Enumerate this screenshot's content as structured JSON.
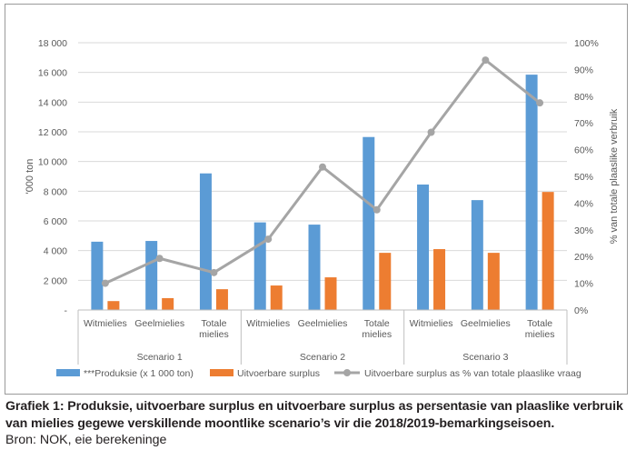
{
  "chart_data": {
    "type": "bar",
    "groups": [
      "Scenario 1",
      "Scenario 2",
      "Scenario 3"
    ],
    "categories": [
      "Witmielies",
      "Geelmielies",
      "Totale mielies",
      "Witmielies",
      "Geelmielies",
      "Totale mielies",
      "Witmielies",
      "Geelmielies",
      "Totale mielies"
    ],
    "category_lines": [
      [
        "Witmielies"
      ],
      [
        "Geelmielies"
      ],
      [
        "Totale",
        "mielies"
      ],
      [
        "Witmielies"
      ],
      [
        "Geelmielies"
      ],
      [
        "Totale",
        "mielies"
      ],
      [
        "Witmielies"
      ],
      [
        "Geelmielies"
      ],
      [
        "Totale",
        "mielies"
      ]
    ],
    "series": [
      {
        "name": "***Produksie (x 1 000 ton)",
        "type": "bar",
        "axis": "left",
        "color": "#5b9bd5",
        "values": [
          4600,
          4650,
          9200,
          5900,
          5750,
          11650,
          8450,
          7400,
          15850
        ]
      },
      {
        "name": "Uitvoerbare surplus",
        "type": "bar",
        "axis": "left",
        "color": "#ed7d31",
        "values": [
          600,
          800,
          1400,
          1650,
          2200,
          3850,
          4100,
          3850,
          7950
        ]
      },
      {
        "name": "Uitvoerbare surplus as % van totale plaaslike vraag",
        "type": "line",
        "axis": "right",
        "color": "#a5a5a5",
        "values": [
          10,
          19.3,
          14,
          26.5,
          53.5,
          37.5,
          66.5,
          93.5,
          77.5
        ]
      }
    ],
    "ylabel": "'000 ton",
    "y2label": "% van totale plaaslike verbruik",
    "ylim": [
      0,
      18000
    ],
    "y2lim": [
      0,
      100
    ],
    "yticks": [
      "-",
      "2 000",
      "4 000",
      "6 000",
      "8 000",
      "10 000",
      "12 000",
      "14 000",
      "16 000",
      "18 000"
    ],
    "y2ticks": [
      "0%",
      "10%",
      "20%",
      "30%",
      "40%",
      "50%",
      "60%",
      "70%",
      "80%",
      "90%",
      "100%"
    ],
    "grid": true,
    "legend": "bottom"
  },
  "caption": "Grafiek 1: Produksie, uitvoerbare surplus en uitvoerbare surplus as persentasie van plaaslike verbruik van mielies gegewe verskillende moontlike scenario’s vir die 2018/2019-bemarkingseisoen.",
  "source": "Bron: NOK, eie berekeninge"
}
